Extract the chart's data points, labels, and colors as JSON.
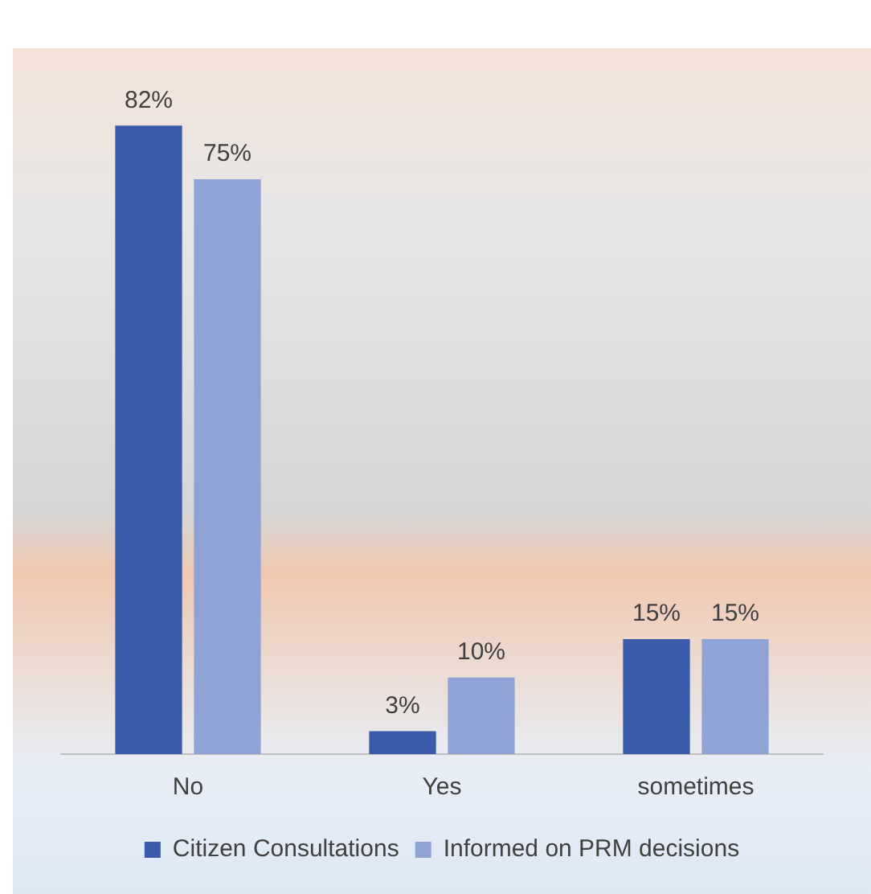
{
  "chart_data": {
    "type": "bar",
    "categories": [
      "No",
      "Yes",
      "sometimes"
    ],
    "series": [
      {
        "name": "Citizen Consultations",
        "color": "#3a5ba9",
        "values": [
          82,
          3,
          15
        ],
        "value_labels": [
          "82%",
          "3%",
          "15%"
        ]
      },
      {
        "name": "Informed on PRM decisions",
        "color": "#8fa3d6",
        "values": [
          75,
          10,
          15
        ],
        "value_labels": [
          "75%",
          "10%",
          "15%"
        ]
      }
    ],
    "grid": false,
    "legend": "bottom"
  }
}
